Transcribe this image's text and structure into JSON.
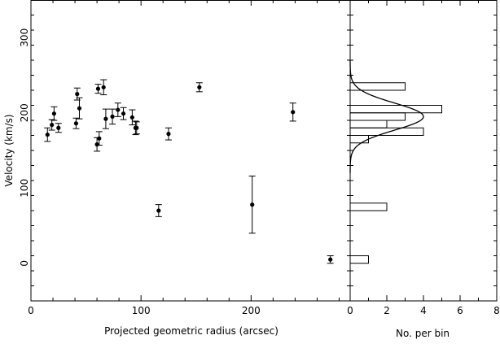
{
  "chart_data": [
    {
      "type": "scatter",
      "xlabel": "Projected geometric radius (arcsec)",
      "ylabel": "Velocity (km/s)",
      "xlim": [
        0,
        290
      ],
      "ylim": [
        -50,
        350
      ],
      "xticks": [
        0,
        100,
        200
      ],
      "yticks": [
        0,
        100,
        200,
        300
      ],
      "points": [
        {
          "x": 15,
          "y": 171,
          "err": 9
        },
        {
          "x": 19,
          "y": 184,
          "err": 7
        },
        {
          "x": 21,
          "y": 199,
          "err": 9
        },
        {
          "x": 25,
          "y": 180,
          "err": 6
        },
        {
          "x": 41,
          "y": 186,
          "err": 7
        },
        {
          "x": 42,
          "y": 225,
          "err": 8
        },
        {
          "x": 44,
          "y": 206,
          "err": 14
        },
        {
          "x": 60,
          "y": 158,
          "err": 9
        },
        {
          "x": 61,
          "y": 232,
          "err": 6
        },
        {
          "x": 62,
          "y": 166,
          "err": 9
        },
        {
          "x": 66,
          "y": 234,
          "err": 10
        },
        {
          "x": 68,
          "y": 192,
          "err": 13
        },
        {
          "x": 74,
          "y": 195,
          "err": 10
        },
        {
          "x": 79,
          "y": 204,
          "err": 9
        },
        {
          "x": 84,
          "y": 199,
          "err": 8
        },
        {
          "x": 92,
          "y": 194,
          "err": 10
        },
        {
          "x": 95,
          "y": 180,
          "err": 9
        },
        {
          "x": 96,
          "y": 180,
          "err": 8
        },
        {
          "x": 116,
          "y": 70,
          "err": 8
        },
        {
          "x": 125,
          "y": 172,
          "err": 8
        },
        {
          "x": 153,
          "y": 234,
          "err": 6
        },
        {
          "x": 201,
          "y": 78,
          "err": 38
        },
        {
          "x": 238,
          "y": 201,
          "err": 12
        },
        {
          "x": 272,
          "y": 5,
          "err": 5
        }
      ]
    },
    {
      "type": "bar",
      "orientation": "horizontal",
      "xlabel": "No. per bin",
      "xlim": [
        0,
        8
      ],
      "xticks": [
        0,
        2,
        4,
        6,
        8
      ],
      "ylim": [
        -50,
        350
      ],
      "bin_width": 10,
      "bins": [
        {
          "from": 0,
          "to": 10,
          "count": 1
        },
        {
          "from": 70,
          "to": 80,
          "count": 2
        },
        {
          "from": 160,
          "to": 170,
          "count": 1
        },
        {
          "from": 170,
          "to": 180,
          "count": 4
        },
        {
          "from": 180,
          "to": 190,
          "count": 2
        },
        {
          "from": 190,
          "to": 200,
          "count": 3
        },
        {
          "from": 200,
          "to": 210,
          "count": 5
        },
        {
          "from": 230,
          "to": 240,
          "count": 3
        }
      ],
      "gaussian_fit": {
        "mean": 195,
        "sigma": 18,
        "peak": 4.0
      }
    }
  ]
}
